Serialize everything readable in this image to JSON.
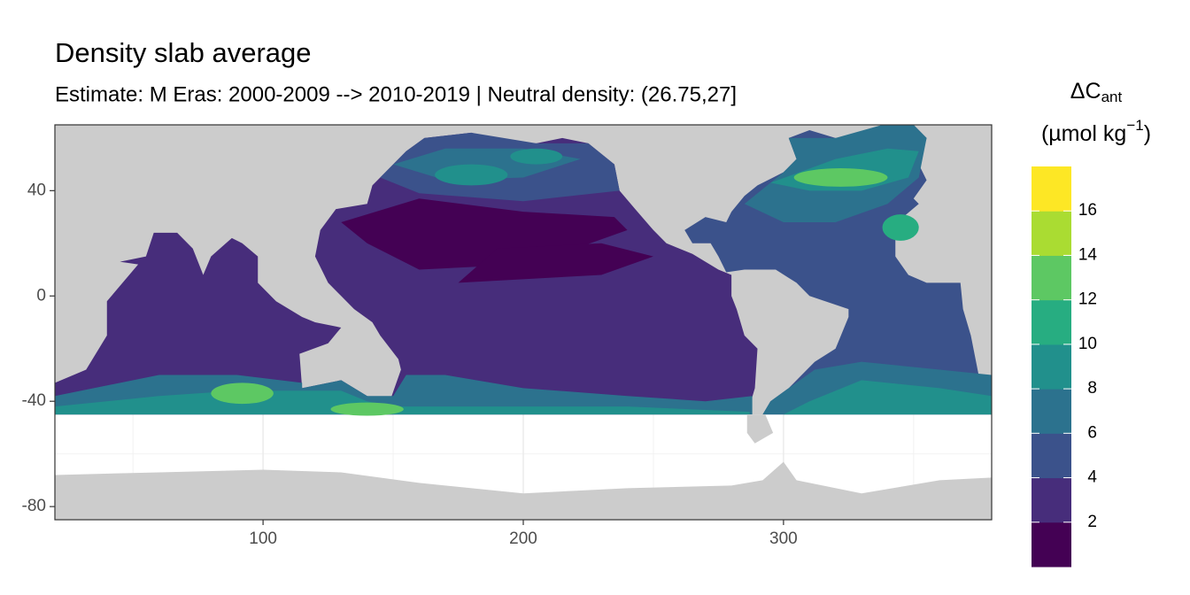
{
  "chart_data": {
    "type": "map",
    "title": "Density slab average",
    "subtitle": "Estimate: M Eras: 2000-2009 --> 2010-2019 | Neutral density: (26.75,27]",
    "xlim": [
      20,
      380
    ],
    "ylim": [
      -85,
      65
    ],
    "xticks": [
      100,
      200,
      300
    ],
    "yticks": [
      -80,
      -40,
      0,
      40
    ],
    "x_minor_grid": [
      50,
      150,
      250,
      350
    ],
    "y_minor_grid": [
      -60,
      -20,
      20,
      60
    ],
    "grid": true,
    "legend": {
      "title_main": "ΔC",
      "title_sub": "ant",
      "unit_open": "(µmol kg",
      "unit_sup": "−1",
      "unit_close": ")",
      "limits": [
        0,
        18
      ],
      "ticks": [
        2,
        4,
        6,
        8,
        10,
        12,
        14,
        16
      ],
      "colors": [
        "#440154",
        "#472D7B",
        "#3B528B",
        "#2C728E",
        "#21908C",
        "#27AD81",
        "#5DC863",
        "#AADC32",
        "#FDE725"
      ]
    },
    "land_color": "#cccccc"
  }
}
